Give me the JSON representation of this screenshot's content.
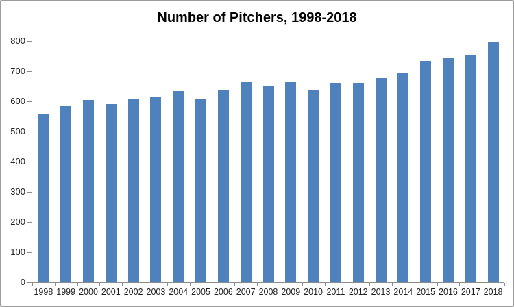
{
  "chart_data": {
    "type": "bar",
    "title": "Number of Pitchers, 1998-2018",
    "categories": [
      "1998",
      "1999",
      "2000",
      "2001",
      "2002",
      "2003",
      "2004",
      "2005",
      "2006",
      "2007",
      "2008",
      "2009",
      "2010",
      "2011",
      "2012",
      "2013",
      "2014",
      "2015",
      "2016",
      "2017",
      "2018"
    ],
    "values": [
      558,
      585,
      605,
      592,
      607,
      613,
      633,
      607,
      636,
      665,
      650,
      664,
      636,
      661,
      661,
      677,
      693,
      735,
      743,
      755,
      798
    ],
    "xlabel": "",
    "ylabel": "",
    "ylim": [
      0,
      800
    ],
    "yticks": [
      0,
      100,
      200,
      300,
      400,
      500,
      600,
      700,
      800
    ],
    "grid": false,
    "legend": "none",
    "bar_gap_ratio": 0.5,
    "colors": {
      "bar": "#4F81BD",
      "axis": "#8C8C8C",
      "labels": "#1F1F1F",
      "title": "#000000",
      "frame_border": "#9C9C9C",
      "background": "#FFFFFF"
    }
  }
}
